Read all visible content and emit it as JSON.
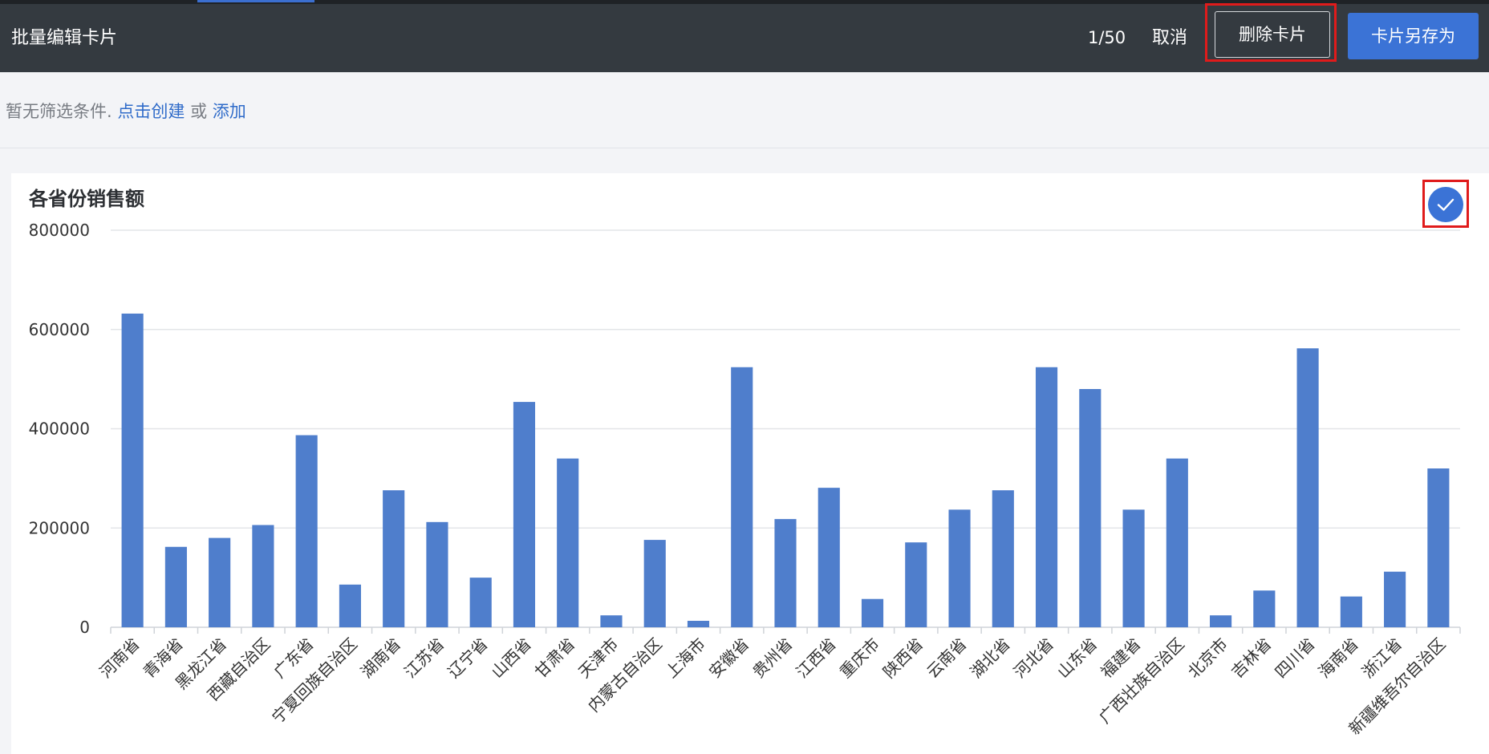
{
  "toolbar": {
    "title": "批量编辑卡片",
    "counter": "1/50",
    "cancel_label": "取消",
    "delete_label": "删除卡片",
    "save_as_label": "卡片另存为"
  },
  "filter": {
    "empty_text": "暂无筛选条件.",
    "create_link": "点击创建",
    "or_text": "或",
    "add_link": "添加"
  },
  "card": {
    "check_icon": "check-icon"
  },
  "colors": {
    "toolbar_bg": "#343a40",
    "accent": "#3b73d6",
    "bar": "#4f7ecc",
    "highlight": "#e01b1b"
  },
  "chart_data": {
    "type": "bar",
    "title": "各省份销售额",
    "xlabel": "",
    "ylabel": "",
    "ylim": [
      0,
      800000
    ],
    "yticks": [
      0,
      200000,
      400000,
      600000,
      800000
    ],
    "grid": true,
    "categories": [
      "河南省",
      "青海省",
      "黑龙江省",
      "西藏自治区",
      "广东省",
      "宁夏回族自治区",
      "湖南省",
      "江苏省",
      "辽宁省",
      "山西省",
      "甘肃省",
      "天津市",
      "内蒙古自治区",
      "上海市",
      "安徽省",
      "贵州省",
      "江西省",
      "重庆市",
      "陕西省",
      "云南省",
      "湖北省",
      "河北省",
      "山东省",
      "福建省",
      "广西壮族自治区",
      "北京市",
      "吉林省",
      "四川省",
      "海南省",
      "浙江省",
      "新疆维吾尔自治区"
    ],
    "values": [
      632000,
      162000,
      180000,
      206000,
      387000,
      86000,
      276000,
      212000,
      100000,
      454000,
      340000,
      24000,
      176000,
      13000,
      524000,
      218000,
      281000,
      57000,
      171000,
      237000,
      276000,
      524000,
      480000,
      237000,
      340000,
      24000,
      74000,
      562000,
      62000,
      112000,
      320000
    ]
  }
}
